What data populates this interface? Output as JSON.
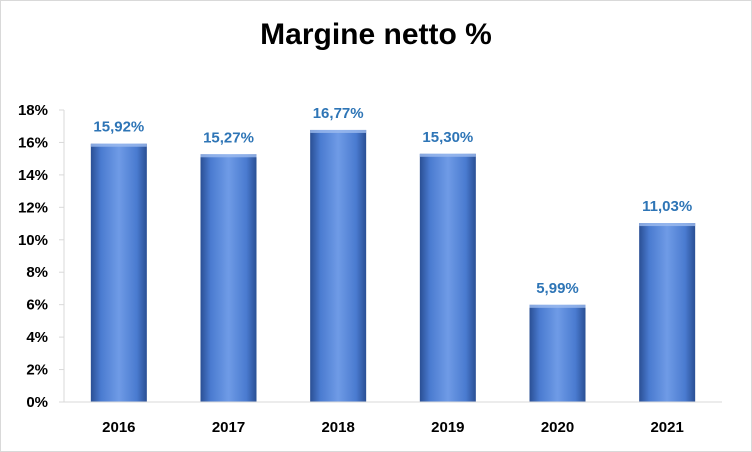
{
  "chart_data": {
    "type": "bar",
    "title": "Margine netto %",
    "xlabel": "",
    "ylabel": "",
    "categories": [
      "2016",
      "2017",
      "2018",
      "2019",
      "2020",
      "2021"
    ],
    "values": [
      15.92,
      15.27,
      16.77,
      15.3,
      5.99,
      11.03
    ],
    "data_labels": [
      "15,92%",
      "15,27%",
      "16,77%",
      "15,30%",
      "5,99%",
      "11,03%"
    ],
    "ylim": [
      0,
      18
    ],
    "yticks": [
      0,
      2,
      4,
      6,
      8,
      10,
      12,
      14,
      16,
      18
    ],
    "ytick_labels": [
      "0%",
      "2%",
      "4%",
      "6%",
      "8%",
      "10%",
      "12%",
      "14%",
      "16%",
      "18%"
    ],
    "grid": false,
    "legend": "none",
    "colors": {
      "bar": "#4472c4",
      "bar_light": "#6f9be6",
      "bar_dark": "#2a4f94",
      "data_label": "#2e75b6",
      "axis": "#d9d9d9",
      "text": "#000000"
    }
  }
}
